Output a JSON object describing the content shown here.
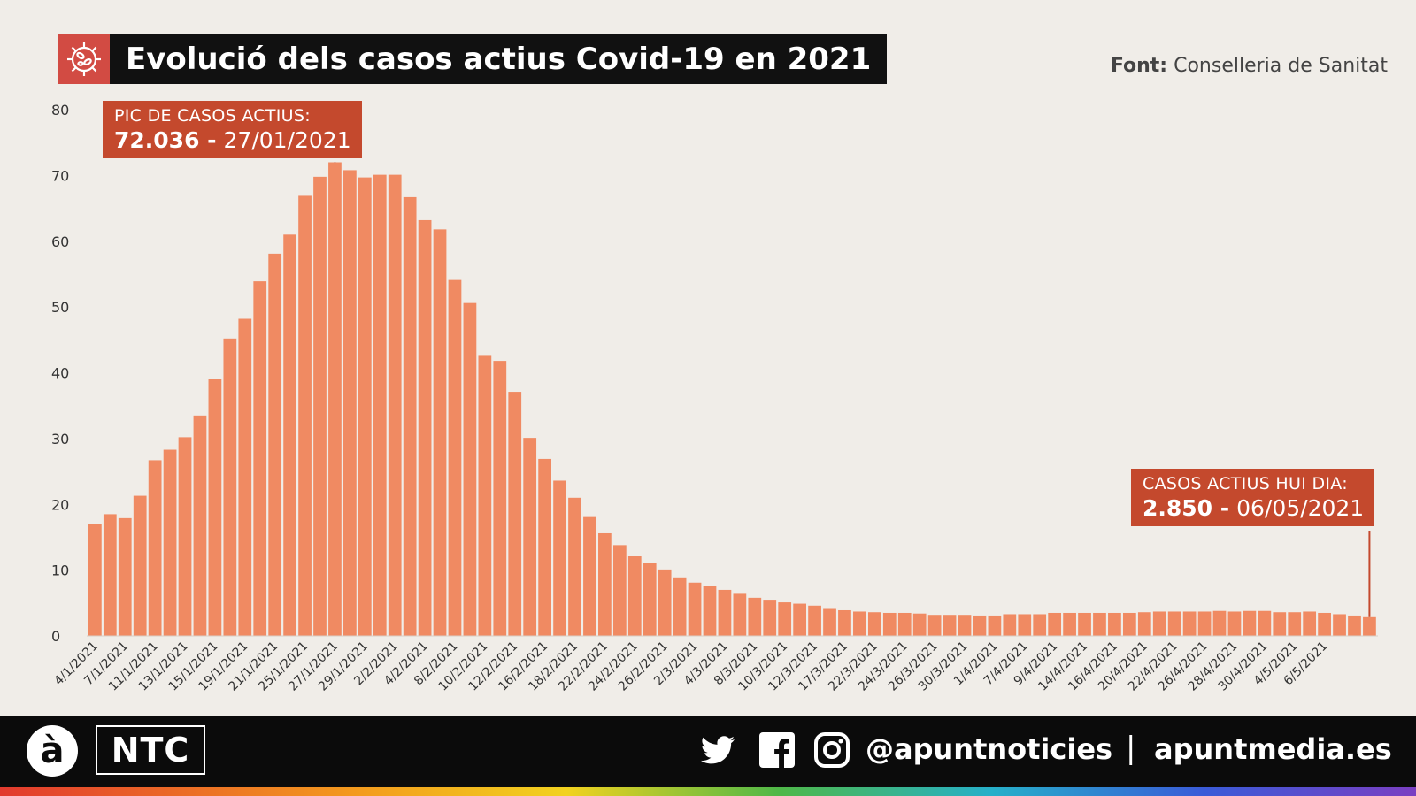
{
  "header": {
    "title": "Evolució dels casos actius Covid-19 en 2021",
    "source_label": "Font:",
    "source_value": "Conselleria de Sanitat"
  },
  "callouts": {
    "peak_label": "PIC DE CASOS ACTIUS:",
    "peak_value": "72.036 -",
    "peak_date": "27/01/2021",
    "today_label": "CASOS ACTIUS HUI DIA:",
    "today_value": "2.850 -",
    "today_date": "06/05/2021"
  },
  "footer": {
    "logo_a": "à",
    "logo_ntc": "NTC",
    "handle": "@apuntnoticies",
    "separator": "|",
    "site": "apuntmedia.es"
  },
  "colors": {
    "bar": "#f08a62",
    "callout": "#c4492d",
    "title_icon": "#d24b43",
    "background": "#f0ede8"
  },
  "chart_data": {
    "type": "bar",
    "ylim": [
      0,
      80
    ],
    "yticks": [
      0,
      10,
      20,
      30,
      40,
      50,
      60,
      70,
      80
    ],
    "grid": false,
    "x_tick_labels": [
      "4/1/2021",
      "7/1/2021",
      "11/1/2021",
      "13/1/2021",
      "15/1/2021",
      "19/1/2021",
      "21/1/2021",
      "25/1/2021",
      "27/1/2021",
      "29/1/2021",
      "2/2/2021",
      "4/2/2021",
      "8/2/2021",
      "10/2/2021",
      "12/2/2021",
      "16/2/2021",
      "18/2/2021",
      "22/2/2021",
      "24/2/2021",
      "26/2/2021",
      "2/3/2021",
      "4/3/2021",
      "8/3/2021",
      "10/3/2021",
      "12/3/2021",
      "17/3/2021",
      "22/3/2021",
      "24/3/2021",
      "26/3/2021",
      "30/3/2021",
      "1/4/2021",
      "7/4/2021",
      "9/4/2021",
      "14/4/2021",
      "16/4/2021",
      "20/4/2021",
      "22/4/2021",
      "26/4/2021",
      "28/4/2021",
      "30/4/2021",
      "4/5/2021",
      "6/5/2021"
    ],
    "values": [
      17.0,
      18.5,
      17.9,
      21.3,
      26.7,
      28.3,
      30.2,
      33.5,
      39.1,
      45.2,
      48.2,
      53.9,
      58.1,
      61.0,
      66.9,
      69.8,
      72.0,
      70.8,
      69.7,
      70.1,
      70.1,
      66.7,
      63.2,
      61.8,
      54.1,
      50.6,
      42.7,
      41.8,
      37.1,
      30.1,
      26.9,
      23.6,
      21.0,
      18.2,
      15.6,
      13.8,
      12.1,
      11.1,
      10.1,
      8.9,
      8.1,
      7.6,
      7.0,
      6.4,
      5.8,
      5.5,
      5.1,
      4.9,
      4.6,
      4.1,
      3.9,
      3.7,
      3.6,
      3.5,
      3.5,
      3.4,
      3.2,
      3.2,
      3.2,
      3.1,
      3.1,
      3.3,
      3.3,
      3.3,
      3.5,
      3.5,
      3.5,
      3.5,
      3.5,
      3.5,
      3.6,
      3.7,
      3.7,
      3.7,
      3.7,
      3.8,
      3.7,
      3.8,
      3.8,
      3.6,
      3.6,
      3.7,
      3.5,
      3.3,
      3.1,
      2.85
    ]
  }
}
